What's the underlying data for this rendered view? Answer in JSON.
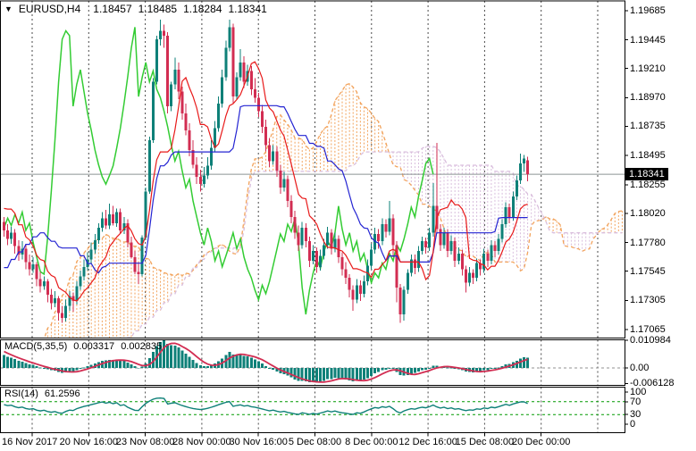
{
  "window": {
    "symbol": "EURUSD,H4",
    "ohlc": {
      "open": "1.18457",
      "high": "1.18485",
      "low": "1.18284",
      "close": "1.18341"
    }
  },
  "price_axis": {
    "ticks": [
      "1.19685",
      "1.19445",
      "1.19210",
      "1.18970",
      "1.18735",
      "1.18495",
      "1.18255",
      "1.18020",
      "1.17780",
      "1.17545",
      "1.17305",
      "1.17065"
    ],
    "current_price": "1.18341"
  },
  "time_axis": {
    "labels": [
      "16 Nov 2017",
      "20 Nov 16:00",
      "23 Nov 08:00",
      "28 Nov 00:00",
      "30 Nov 16:00",
      "5 Dec 08:00",
      "8 Dec 00:00",
      "12 Dec 16:00",
      "15 Dec 08:00",
      "20 Dec 00:00"
    ]
  },
  "macd_panel": {
    "label": "MACD(5,35,5)",
    "value_main": "0.003317",
    "value_signal": "0.002835",
    "axis_ticks": [
      "0.010984",
      "0.00",
      "-0.006128"
    ]
  },
  "rsi_panel": {
    "label": "RSI(14)",
    "value": "61.2596",
    "axis_ticks": [
      "100",
      "70",
      "30",
      "0"
    ],
    "levels": [
      70,
      30
    ]
  },
  "colors": {
    "bull": "#0e8078",
    "bear": "#d22d52",
    "tenkan": "#e81a1a",
    "kijun": "#2424d2",
    "chikou": "#33cc33",
    "span_a": "#f2a35c",
    "span_b": "#d9bedd",
    "macd_hist": "#0e8078",
    "macd_signal": "#d22d52",
    "rsi_line": "#0e8078",
    "rsi_level": "#009900",
    "grid": "#4a4a4a",
    "price_line": "#8c9494",
    "border": "#000000",
    "badge_bg": "#000000",
    "badge_text": "#ffffff"
  },
  "chart_data": {
    "type": "candlestick",
    "symbol": "EURUSD",
    "timeframe": "H4",
    "x_range": [
      "16 Nov 2017 00:00",
      "20 Dec 2017 00:00"
    ],
    "y_range": [
      1.17,
      1.1977
    ],
    "ichimoku_params": {
      "tenkan": 9,
      "kijun": 26,
      "senkou_b": 52,
      "shift": 26
    },
    "macd_params": [
      5,
      35,
      5
    ],
    "rsi_params": 14,
    "indicator_warmup_waypoints": [
      [
        -78,
        1.1648
      ],
      [
        -66,
        1.1612
      ],
      [
        -54,
        1.1556
      ],
      [
        -44,
        1.1572
      ],
      [
        -34,
        1.1628
      ],
      [
        -24,
        1.17
      ],
      [
        -14,
        1.1762
      ],
      [
        -6,
        1.1822
      ],
      [
        -1,
        1.179
      ]
    ],
    "candles": [
      [
        1.1795,
        1.1799,
        1.1783,
        1.1788
      ],
      [
        1.1788,
        1.1793,
        1.1776,
        1.1781
      ],
      [
        1.1781,
        1.1791,
        1.1777,
        1.1786
      ],
      [
        1.1786,
        1.1789,
        1.1769,
        1.1775
      ],
      [
        1.1775,
        1.178,
        1.1763,
        1.1768
      ],
      [
        1.1768,
        1.1779,
        1.1764,
        1.1773
      ],
      [
        1.1773,
        1.1776,
        1.1756,
        1.1762
      ],
      [
        1.1762,
        1.1768,
        1.1751,
        1.1756
      ],
      [
        1.1756,
        1.1766,
        1.1753,
        1.176
      ],
      [
        1.176,
        1.1762,
        1.1742,
        1.1748
      ],
      [
        1.1748,
        1.1754,
        1.1737,
        1.1742
      ],
      [
        1.1742,
        1.175,
        1.1739,
        1.1746
      ],
      [
        1.1746,
        1.1748,
        1.1729,
        1.1735
      ],
      [
        1.1735,
        1.174,
        1.1723,
        1.1728
      ],
      [
        1.1728,
        1.1738,
        1.1725,
        1.1732
      ],
      [
        1.1732,
        1.1734,
        1.1714,
        1.172
      ],
      [
        1.172,
        1.1726,
        1.1712,
        1.1716
      ],
      [
        1.1716,
        1.1731,
        1.1713,
        1.1726
      ],
      [
        1.1726,
        1.1738,
        1.1722,
        1.1734
      ],
      [
        1.1734,
        1.1737,
        1.1721,
        1.173
      ],
      [
        1.173,
        1.1746,
        1.1727,
        1.1742
      ],
      [
        1.1742,
        1.1755,
        1.1739,
        1.175
      ],
      [
        1.175,
        1.1764,
        1.1747,
        1.1758
      ],
      [
        1.1758,
        1.177,
        1.1755,
        1.1764
      ],
      [
        1.1764,
        1.1778,
        1.1761,
        1.1772
      ],
      [
        1.1772,
        1.1785,
        1.1769,
        1.178
      ],
      [
        1.178,
        1.1794,
        1.1777,
        1.179
      ],
      [
        1.179,
        1.1803,
        1.1787,
        1.1798
      ],
      [
        1.1798,
        1.1805,
        1.1789,
        1.1792
      ],
      [
        1.1792,
        1.181,
        1.1789,
        1.1801
      ],
      [
        1.1801,
        1.1808,
        1.1792,
        1.1794
      ],
      [
        1.1794,
        1.1806,
        1.1791,
        1.1803
      ],
      [
        1.1803,
        1.1806,
        1.1785,
        1.1788
      ],
      [
        1.1788,
        1.1799,
        1.1785,
        1.1794
      ],
      [
        1.1794,
        1.1797,
        1.1774,
        1.1778
      ],
      [
        1.1778,
        1.1783,
        1.1765,
        1.1766
      ],
      [
        1.1766,
        1.1771,
        1.1752,
        1.1754
      ],
      [
        1.1754,
        1.1762,
        1.1744,
        1.1752
      ],
      [
        1.1752,
        1.1784,
        1.175,
        1.1782
      ],
      [
        1.1782,
        1.1823,
        1.178,
        1.182
      ],
      [
        1.182,
        1.1865,
        1.1818,
        1.1862
      ],
      [
        1.1862,
        1.1913,
        1.186,
        1.191
      ],
      [
        1.191,
        1.1948,
        1.1908,
        1.1945
      ],
      [
        1.1945,
        1.1961,
        1.194,
        1.1952
      ],
      [
        1.1952,
        1.1957,
        1.1938,
        1.1948
      ],
      [
        1.1948,
        1.1951,
        1.1884,
        1.189
      ],
      [
        1.189,
        1.191,
        1.1886,
        1.1908
      ],
      [
        1.1908,
        1.193,
        1.1904,
        1.192
      ],
      [
        1.192,
        1.1926,
        1.1896,
        1.1902
      ],
      [
        1.1902,
        1.1906,
        1.1879,
        1.1884
      ],
      [
        1.1884,
        1.1892,
        1.1866,
        1.187
      ],
      [
        1.187,
        1.1876,
        1.1849,
        1.1854
      ],
      [
        1.1854,
        1.1862,
        1.1839,
        1.1842
      ],
      [
        1.1842,
        1.1848,
        1.1826,
        1.1832
      ],
      [
        1.1832,
        1.1838,
        1.182,
        1.1826
      ],
      [
        1.1826,
        1.184,
        1.1823,
        1.1833
      ],
      [
        1.1833,
        1.1848,
        1.183,
        1.1841
      ],
      [
        1.1841,
        1.1862,
        1.1838,
        1.1856
      ],
      [
        1.1856,
        1.1878,
        1.1853,
        1.1872
      ],
      [
        1.1872,
        1.1898,
        1.1869,
        1.1892
      ],
      [
        1.1892,
        1.192,
        1.1889,
        1.1914
      ],
      [
        1.1914,
        1.1944,
        1.1911,
        1.1938
      ],
      [
        1.1938,
        1.1961,
        1.1935,
        1.1955
      ],
      [
        1.1955,
        1.1958,
        1.1892,
        1.1898
      ],
      [
        1.1898,
        1.1918,
        1.1895,
        1.1914
      ],
      [
        1.1914,
        1.1937,
        1.1911,
        1.1926
      ],
      [
        1.1926,
        1.1931,
        1.1905,
        1.191
      ],
      [
        1.191,
        1.1924,
        1.1907,
        1.1919
      ],
      [
        1.1919,
        1.1923,
        1.1899,
        1.1904
      ],
      [
        1.1904,
        1.1913,
        1.1893,
        1.1897
      ],
      [
        1.1897,
        1.1901,
        1.1881,
        1.1886
      ],
      [
        1.1886,
        1.1891,
        1.1868,
        1.1873
      ],
      [
        1.1873,
        1.1879,
        1.1853,
        1.1858
      ],
      [
        1.1858,
        1.1864,
        1.184,
        1.1845
      ],
      [
        1.1845,
        1.1858,
        1.1842,
        1.1853
      ],
      [
        1.1853,
        1.1857,
        1.1832,
        1.1837
      ],
      [
        1.1837,
        1.1842,
        1.1818,
        1.1823
      ],
      [
        1.1823,
        1.1836,
        1.182,
        1.183
      ],
      [
        1.183,
        1.1833,
        1.1807,
        1.1812
      ],
      [
        1.1812,
        1.1817,
        1.1794,
        1.1799
      ],
      [
        1.1799,
        1.1804,
        1.1781,
        1.1786
      ],
      [
        1.1786,
        1.1792,
        1.1771,
        1.1776
      ],
      [
        1.1776,
        1.1795,
        1.1773,
        1.179
      ],
      [
        1.179,
        1.1794,
        1.1774,
        1.1779
      ],
      [
        1.1779,
        1.1783,
        1.1758,
        1.1763
      ],
      [
        1.1763,
        1.1776,
        1.176,
        1.1771
      ],
      [
        1.1771,
        1.1774,
        1.1753,
        1.1758
      ],
      [
        1.1758,
        1.1772,
        1.1755,
        1.1767
      ],
      [
        1.1767,
        1.1781,
        1.1764,
        1.1776
      ],
      [
        1.1776,
        1.1791,
        1.1773,
        1.1786
      ],
      [
        1.1786,
        1.1789,
        1.1768,
        1.1773
      ],
      [
        1.1773,
        1.1786,
        1.177,
        1.1781
      ],
      [
        1.1781,
        1.1784,
        1.1761,
        1.1766
      ],
      [
        1.1766,
        1.177,
        1.1751,
        1.1756
      ],
      [
        1.1756,
        1.1762,
        1.1744,
        1.1749
      ],
      [
        1.1749,
        1.1752,
        1.1733,
        1.1739
      ],
      [
        1.1739,
        1.1743,
        1.1722,
        1.1731
      ],
      [
        1.1731,
        1.1748,
        1.1728,
        1.1743
      ],
      [
        1.1743,
        1.1747,
        1.173,
        1.1736
      ],
      [
        1.1736,
        1.1751,
        1.1733,
        1.1746
      ],
      [
        1.1746,
        1.1764,
        1.1743,
        1.1759
      ],
      [
        1.1759,
        1.1777,
        1.1756,
        1.1772
      ],
      [
        1.1772,
        1.179,
        1.1769,
        1.1785
      ],
      [
        1.1785,
        1.1789,
        1.1773,
        1.1779
      ],
      [
        1.1779,
        1.1798,
        1.1776,
        1.1793
      ],
      [
        1.1793,
        1.1797,
        1.1782,
        1.1787
      ],
      [
        1.1787,
        1.1812,
        1.1784,
        1.1798
      ],
      [
        1.1798,
        1.1801,
        1.1766,
        1.1776
      ],
      [
        1.1776,
        1.1779,
        1.1729,
        1.1741
      ],
      [
        1.1741,
        1.1744,
        1.1712,
        1.1719
      ],
      [
        1.1719,
        1.1742,
        1.1714,
        1.1739
      ],
      [
        1.1739,
        1.1756,
        1.1736,
        1.1753
      ],
      [
        1.1753,
        1.1768,
        1.175,
        1.1764
      ],
      [
        1.1764,
        1.1768,
        1.1752,
        1.1757
      ],
      [
        1.1757,
        1.1775,
        1.1754,
        1.1771
      ],
      [
        1.1771,
        1.1783,
        1.1768,
        1.1779
      ],
      [
        1.1779,
        1.1782,
        1.1769,
        1.1774
      ],
      [
        1.1774,
        1.179,
        1.1771,
        1.1786
      ],
      [
        1.1786,
        1.1827,
        1.1783,
        1.1808
      ],
      [
        1.1808,
        1.186,
        1.1785,
        1.1789
      ],
      [
        1.1789,
        1.1793,
        1.1771,
        1.1776
      ],
      [
        1.1776,
        1.179,
        1.1773,
        1.1786
      ],
      [
        1.1786,
        1.1789,
        1.1766,
        1.1771
      ],
      [
        1.1771,
        1.1784,
        1.1768,
        1.1779
      ],
      [
        1.1779,
        1.1782,
        1.1758,
        1.1763
      ],
      [
        1.1763,
        1.1774,
        1.176,
        1.1769
      ],
      [
        1.1769,
        1.1772,
        1.1751,
        1.1756
      ],
      [
        1.1756,
        1.1759,
        1.1737,
        1.1745
      ],
      [
        1.1745,
        1.1758,
        1.1742,
        1.1753
      ],
      [
        1.1753,
        1.1756,
        1.1744,
        1.1749
      ],
      [
        1.1749,
        1.1765,
        1.1746,
        1.1761
      ],
      [
        1.1761,
        1.1764,
        1.1751,
        1.1756
      ],
      [
        1.1756,
        1.1773,
        1.1753,
        1.1769
      ],
      [
        1.1769,
        1.1772,
        1.1758,
        1.1763
      ],
      [
        1.1763,
        1.178,
        1.176,
        1.1776
      ],
      [
        1.1776,
        1.1779,
        1.1766,
        1.1771
      ],
      [
        1.1771,
        1.1785,
        1.1768,
        1.1781
      ],
      [
        1.1781,
        1.1797,
        1.1778,
        1.1793
      ],
      [
        1.1793,
        1.1811,
        1.179,
        1.1807
      ],
      [
        1.1807,
        1.181,
        1.1794,
        1.1799
      ],
      [
        1.1799,
        1.182,
        1.1796,
        1.1816
      ],
      [
        1.1816,
        1.1833,
        1.1813,
        1.1829
      ],
      [
        1.1829,
        1.1851,
        1.1826,
        1.1843
      ],
      [
        1.1843,
        1.185,
        1.1836,
        1.1847
      ],
      [
        1.18457,
        1.18485,
        1.18284,
        1.18341
      ]
    ]
  }
}
